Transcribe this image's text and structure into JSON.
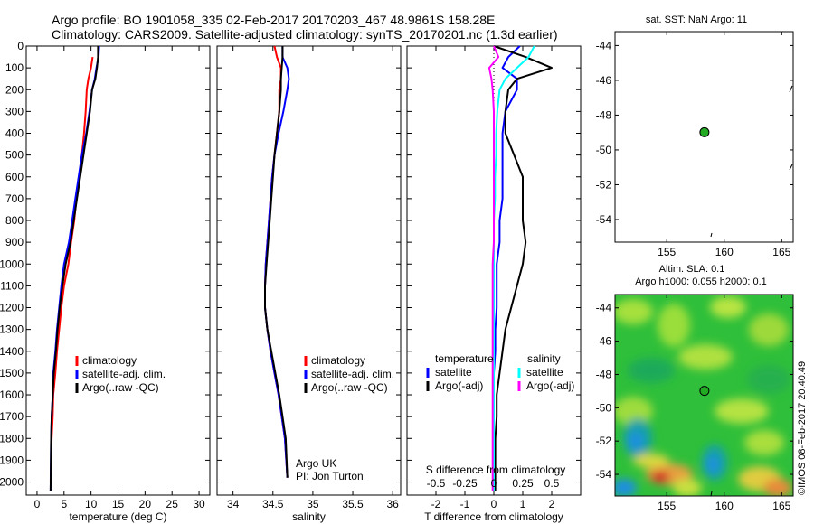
{
  "header": {
    "line1": "Argo profile: BO 1901058_335 02-Feb-2017 20170203_467 48.9861S 158.28E",
    "line2": "Climatology: CARS2009. Satellite-adjusted climatology: synTS_20170201.nc (1.3d earlier)"
  },
  "colors": {
    "climatology": "#ff0000",
    "satellite": "#0000ff",
    "argo": "#000000",
    "s_satellite": "#00ffff",
    "s_argo": "#ff00ff",
    "marker": "#22aa22"
  },
  "side_text": "©IMOS 08-Feb-2017 20:40:49",
  "chart_data": [
    {
      "id": "temperature",
      "type": "line",
      "xlabel": "temperature (deg C)",
      "ylabel": "",
      "xlim": [
        -2,
        32
      ],
      "ylim": [
        2060,
        0
      ],
      "xticks": [
        0,
        5,
        10,
        15,
        20,
        25,
        30
      ],
      "yticks": [
        0,
        100,
        200,
        300,
        400,
        500,
        600,
        700,
        800,
        900,
        1000,
        1100,
        1200,
        1300,
        1400,
        1500,
        1600,
        1700,
        1800,
        1900,
        2000
      ],
      "legend": [
        "climatology",
        "satellite-adj. clim.",
        "Argo(..raw -QC)"
      ],
      "series": [
        {
          "name": "climatology",
          "color": "#ff0000",
          "x": [
            10.3,
            10.0,
            9.5,
            9.2,
            9.0,
            8.7,
            8.3,
            7.8,
            7.3,
            6.9,
            6.3,
            5.8,
            5.0,
            4.5,
            4.1,
            3.7,
            3.4,
            3.0,
            2.9,
            2.7,
            2.6,
            2.5
          ],
          "y": [
            50,
            100,
            150,
            200,
            300,
            400,
            500,
            600,
            700,
            800,
            900,
            1000,
            1100,
            1200,
            1300,
            1400,
            1500,
            1600,
            1700,
            1800,
            1900,
            2000
          ]
        },
        {
          "name": "satellite-adj. clim.",
          "color": "#0000ff",
          "x": [
            11.5,
            11.4,
            11.0,
            10.7,
            10.2,
            9.7,
            9.1,
            8.3,
            7.7,
            7.1,
            6.5,
            5.9,
            5.0,
            4.5,
            4.1,
            3.7,
            3.4,
            3.0,
            2.9,
            2.7,
            2.6,
            2.5
          ],
          "y": [
            0,
            50,
            100,
            150,
            200,
            300,
            400,
            500,
            600,
            700,
            800,
            900,
            1000,
            1100,
            1200,
            1300,
            1400,
            1500,
            1600,
            1700,
            1800,
            2040
          ]
        },
        {
          "name": "Argo(..raw -QC)",
          "color": "#000000",
          "x": [
            11.3,
            11.3,
            11.1,
            10.8,
            10.2,
            9.8,
            9.2,
            8.6,
            8.0,
            7.4,
            6.8,
            6.2,
            5.3,
            4.7,
            4.2,
            3.8,
            3.5,
            3.1,
            2.9,
            2.7,
            2.6,
            2.5
          ],
          "y": [
            0,
            50,
            100,
            150,
            200,
            300,
            400,
            500,
            600,
            700,
            800,
            900,
            1000,
            1100,
            1200,
            1300,
            1400,
            1500,
            1600,
            1700,
            1800,
            2040
          ]
        }
      ]
    },
    {
      "id": "salinity",
      "type": "line",
      "xlabel": "salinity",
      "ylabel": "",
      "xlim": [
        33.8,
        36.1
      ],
      "ylim": [
        2060,
        0
      ],
      "xticks": [
        34,
        34.5,
        35,
        35.5,
        36
      ],
      "legend": [
        "climatology",
        "satellite-adj. clim.",
        "Argo(..raw -QC)"
      ],
      "annotations": [
        "Argo UK",
        "PI: Jon Turton"
      ],
      "series": [
        {
          "name": "climatology",
          "color": "#ff0000",
          "x": [
            34.52,
            34.55,
            34.6,
            34.6,
            34.58,
            34.58,
            34.55,
            34.52,
            34.49,
            34.47,
            34.45,
            34.43,
            34.41,
            34.4,
            34.4,
            34.43,
            34.47,
            34.52,
            34.57,
            34.61,
            34.65,
            34.68
          ],
          "y": [
            0,
            50,
            100,
            150,
            200,
            300,
            400,
            500,
            600,
            700,
            800,
            900,
            1000,
            1100,
            1200,
            1300,
            1400,
            1500,
            1600,
            1700,
            1800,
            1980
          ]
        },
        {
          "name": "satellite-adj. clim.",
          "color": "#0000ff",
          "x": [
            34.62,
            34.62,
            34.68,
            34.7,
            34.68,
            34.63,
            34.57,
            34.52,
            34.49,
            34.47,
            34.45,
            34.43,
            34.41,
            34.4,
            34.4,
            34.43,
            34.47,
            34.52,
            34.57,
            34.61,
            34.65,
            34.68
          ],
          "y": [
            0,
            50,
            100,
            150,
            200,
            300,
            400,
            500,
            600,
            700,
            800,
            900,
            1000,
            1100,
            1200,
            1300,
            1400,
            1500,
            1600,
            1700,
            1800,
            1980
          ]
        },
        {
          "name": "Argo(..raw -QC)",
          "color": "#000000",
          "x": [
            34.62,
            34.62,
            34.61,
            34.6,
            34.6,
            34.58,
            34.55,
            34.52,
            34.5,
            34.48,
            34.46,
            34.44,
            34.42,
            34.4,
            34.4,
            34.43,
            34.48,
            34.53,
            34.58,
            34.62,
            34.66,
            34.68
          ],
          "y": [
            0,
            50,
            100,
            150,
            200,
            300,
            400,
            500,
            600,
            700,
            800,
            900,
            1000,
            1100,
            1200,
            1300,
            1400,
            1500,
            1600,
            1700,
            1800,
            1980
          ]
        }
      ]
    },
    {
      "id": "difference",
      "type": "line",
      "xlabel": "T difference from climatology",
      "top_label": "S difference from climatology",
      "ylabel": "",
      "xlim": [
        -3,
        3
      ],
      "ylim": [
        2060,
        0
      ],
      "xticks": [
        -2,
        -1,
        0,
        1,
        2
      ],
      "s_xlim": [
        -0.75,
        0.75
      ],
      "s_xticks": [
        -0.5,
        -0.25,
        0,
        0.25,
        0.5
      ],
      "s_xticklabels": [
        "-0.5",
        "-0.25",
        "0",
        "0.25",
        "0.5"
      ],
      "legend_temperature": {
        "title": "temperature",
        "items": [
          "satellite",
          "Argo(-adj)"
        ]
      },
      "legend_salinity": {
        "title": "salinity",
        "items": [
          "satellite",
          "Argo(-adj)"
        ]
      },
      "series": [
        {
          "name": "satellite",
          "group": "temperature",
          "color": "#0000ff",
          "x": [
            0.9,
            0.5,
            0.3,
            0.8,
            0.8,
            0.4,
            0.3,
            0.3,
            0.3,
            0.3,
            0.2,
            0.2,
            0.1,
            0.1,
            0.1,
            0.05,
            0.05,
            0.0,
            0.0,
            0.0,
            0.0,
            0.0
          ],
          "y": [
            0,
            50,
            100,
            150,
            200,
            300,
            400,
            500,
            600,
            700,
            800,
            900,
            1000,
            1100,
            1200,
            1300,
            1400,
            1500,
            1600,
            1700,
            1800,
            2000
          ]
        },
        {
          "name": "Argo(-adj)",
          "group": "temperature",
          "color": "#000000",
          "x": [
            0.0,
            1.1,
            2.0,
            0.8,
            0.5,
            0.4,
            0.4,
            0.7,
            1.0,
            1.0,
            1.0,
            1.1,
            1.0,
            0.8,
            0.6,
            0.4,
            0.3,
            0.2,
            0.1,
            0.1,
            0.05,
            0.05
          ],
          "y": [
            0,
            50,
            100,
            150,
            200,
            300,
            400,
            500,
            600,
            700,
            800,
            900,
            1000,
            1100,
            1200,
            1300,
            1400,
            1500,
            1600,
            1700,
            1800,
            2040
          ]
        },
        {
          "name": "satellite",
          "group": "salinity",
          "color": "#00ffff",
          "x": [
            0.35,
            0.3,
            0.2,
            0.1,
            0.05,
            0.03,
            0.02,
            0.02,
            0.01,
            0.01,
            0.0,
            0.0,
            0.0,
            0.0,
            0.0,
            0.0,
            0.0,
            0.0,
            0.0,
            0.0,
            0.0,
            0.0
          ],
          "y": [
            0,
            50,
            100,
            150,
            200,
            300,
            400,
            500,
            600,
            700,
            800,
            900,
            1000,
            1100,
            1200,
            1300,
            1400,
            1500,
            1600,
            1700,
            1800,
            2040
          ]
        },
        {
          "name": "Argo(-adj)",
          "group": "salinity",
          "color": "#ff00ff",
          "x": [
            0.0,
            0.04,
            -0.04,
            -0.02,
            -0.01,
            0.0,
            0.0,
            0.0,
            0.0,
            0.0,
            0.0,
            0.0,
            -0.01,
            -0.01,
            -0.01,
            -0.01,
            -0.01,
            -0.01,
            -0.01,
            -0.01,
            -0.01,
            -0.01
          ],
          "y": [
            0,
            50,
            100,
            150,
            200,
            300,
            400,
            500,
            600,
            700,
            800,
            900,
            1000,
            1100,
            1200,
            1300,
            1400,
            1500,
            1600,
            1700,
            1800,
            2040
          ]
        }
      ]
    },
    {
      "id": "sst_map",
      "type": "scatter",
      "title": "sat. SST: NaN Argo: 11",
      "xlabel": "",
      "ylabel": "",
      "xlim": [
        150.5,
        166
      ],
      "ylim": [
        -55.3,
        -43.2
      ],
      "xticks": [
        155,
        160,
        165
      ],
      "yticks": [
        -44,
        -46,
        -48,
        -50,
        -52,
        -54
      ],
      "points": [
        {
          "lon": 158.28,
          "lat": -48.9861
        }
      ]
    },
    {
      "id": "sla_map",
      "type": "heatmap",
      "title": "Altim. SLA: 0.1",
      "subtitle": "Argo h1000: 0.055 h2000: 0.1",
      "xlabel": "",
      "ylabel": "",
      "xlim": [
        150.5,
        166
      ],
      "ylim": [
        -55.3,
        -43.2
      ],
      "xticks": [
        155,
        160,
        165
      ],
      "yticks": [
        -44,
        -46,
        -48,
        -50,
        -52,
        -54
      ],
      "points": [
        {
          "lon": 158.28,
          "lat": -48.9861
        }
      ]
    }
  ]
}
